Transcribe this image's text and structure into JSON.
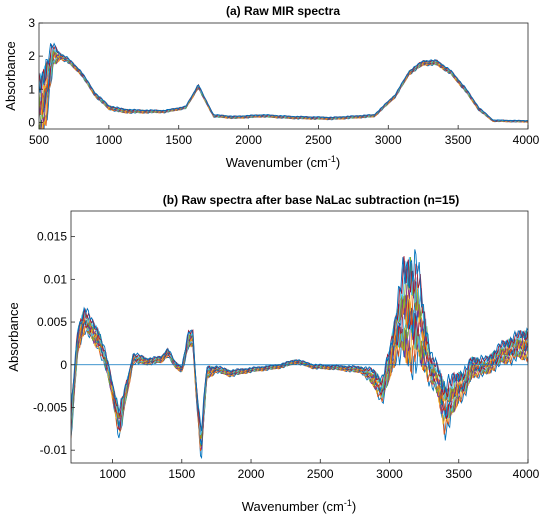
{
  "figure": {
    "panel_a": {
      "title": "(a) Raw MIR spectra",
      "ylabel": "Absorbance",
      "xlabel_main": "Wavenumber (cm",
      "xlabel_sup": "-1",
      "xlabel_close": ")"
    },
    "panel_b": {
      "title": "(b) Raw spectra after base NaLac subtraction (n=15)",
      "ylabel": "Absorbance",
      "xlabel_main": "Wavenumber (cm",
      "xlabel_sup": "-1",
      "xlabel_close": ")"
    }
  },
  "chart_data": [
    {
      "type": "line",
      "title": "(a) Raw MIR spectra",
      "xlabel": "Wavenumber (cm-1)",
      "ylabel": "Absorbance",
      "xlim": [
        500,
        4000
      ],
      "ylim": [
        -0.2,
        3
      ],
      "xticks": [
        500,
        1000,
        1500,
        2000,
        2500,
        3000,
        3500,
        4000
      ],
      "yticks": [
        0,
        1,
        2,
        3
      ],
      "n_series": 15,
      "series_colors": [
        "#0072BD",
        "#D95319",
        "#EDB120",
        "#7E2F8E",
        "#77AC30",
        "#4DBEEE",
        "#A2142F",
        "#0072BD",
        "#D95319",
        "#EDB120",
        "#7E2F8E",
        "#77AC30",
        "#4DBEEE",
        "#A2142F",
        "#0072BD"
      ],
      "x": [
        500,
        550,
        600,
        650,
        700,
        800,
        900,
        1000,
        1100,
        1200,
        1400,
        1550,
        1600,
        1640,
        1680,
        1750,
        1900,
        2100,
        2300,
        2600,
        2900,
        3050,
        3150,
        3250,
        3350,
        3450,
        3550,
        3650,
        3750,
        4000
      ],
      "values": [
        0.2,
        1.0,
        2.0,
        2.0,
        1.9,
        1.5,
        0.85,
        0.45,
        0.35,
        0.33,
        0.33,
        0.45,
        0.8,
        1.1,
        0.75,
        0.2,
        0.15,
        0.2,
        0.15,
        0.12,
        0.2,
        0.8,
        1.5,
        1.8,
        1.8,
        1.5,
        1.0,
        0.4,
        0.05,
        0.03
      ],
      "spread": [
        0.9,
        0.8,
        0.3,
        0.08,
        0.06,
        0.05,
        0.05,
        0.05,
        0.05,
        0.04,
        0.03,
        0.03,
        0.04,
        0.05,
        0.04,
        0.03,
        0.03,
        0.03,
        0.03,
        0.03,
        0.03,
        0.04,
        0.05,
        0.06,
        0.06,
        0.05,
        0.05,
        0.04,
        0.02,
        0.02
      ]
    },
    {
      "type": "line",
      "title": "(b) Raw spectra after base NaLac subtraction (n=15)",
      "xlabel": "Wavenumber (cm-1)",
      "ylabel": "Absorbance",
      "xlim": [
        700,
        4000
      ],
      "ylim": [
        -0.0115,
        0.018
      ],
      "xticks": [
        1000,
        1500,
        2000,
        2500,
        3000,
        3500,
        4000
      ],
      "yticks": [
        -0.01,
        -0.005,
        0,
        0.005,
        0.01,
        0.015
      ],
      "ytick_labels": [
        "-0.01",
        "-0.005",
        "0",
        "0.005",
        "0.01",
        "0.015"
      ],
      "zero_line": true,
      "n_series": 15,
      "series_colors": [
        "#0072BD",
        "#D95319",
        "#EDB120",
        "#7E2F8E",
        "#77AC30",
        "#4DBEEE",
        "#A2142F",
        "#0072BD",
        "#D95319",
        "#EDB120",
        "#7E2F8E",
        "#77AC30",
        "#4DBEEE",
        "#A2142F",
        "#0072BD"
      ],
      "x": [
        700,
        750,
        800,
        850,
        900,
        950,
        1000,
        1050,
        1100,
        1150,
        1250,
        1350,
        1400,
        1450,
        1500,
        1550,
        1580,
        1600,
        1640,
        1680,
        1750,
        1850,
        2000,
        2200,
        2330,
        2450,
        2600,
        2800,
        2880,
        2950,
        3000,
        3050,
        3100,
        3150,
        3200,
        3250,
        3300,
        3350,
        3400,
        3450,
        3500,
        3550,
        3600,
        3700,
        3800,
        3900,
        4000
      ],
      "values": [
        -0.007,
        0.003,
        0.0055,
        0.004,
        0.003,
        0.0005,
        -0.003,
        -0.007,
        -0.003,
        0.0008,
        0.0004,
        0.0006,
        0.0015,
        0.0,
        -0.0005,
        0.003,
        0.003,
        -0.002,
        -0.0095,
        -0.001,
        -0.0005,
        -0.001,
        -0.0006,
        -0.0002,
        0.0004,
        -0.0002,
        -0.0003,
        -0.0006,
        -0.0015,
        -0.003,
        0.0,
        0.004,
        0.006,
        0.0065,
        0.006,
        0.003,
        -0.0005,
        -0.002,
        -0.005,
        -0.004,
        -0.0025,
        -0.002,
        -0.0002,
        -0.0002,
        0.0012,
        0.002,
        0.0025
      ],
      "spread": [
        0.0015,
        0.0012,
        0.0012,
        0.001,
        0.001,
        0.0008,
        0.0008,
        0.0015,
        0.0008,
        0.0005,
        0.0003,
        0.0003,
        0.0004,
        0.0003,
        0.0003,
        0.0008,
        0.0008,
        0.0006,
        0.0015,
        0.0006,
        0.0003,
        0.0003,
        0.0002,
        0.0002,
        0.0002,
        0.0002,
        0.0002,
        0.0003,
        0.0008,
        0.0012,
        0.0015,
        0.0025,
        0.0045,
        0.0055,
        0.005,
        0.003,
        0.0015,
        0.0015,
        0.0025,
        0.002,
        0.0015,
        0.0012,
        0.001,
        0.0008,
        0.001,
        0.0012,
        0.0015
      ]
    }
  ]
}
